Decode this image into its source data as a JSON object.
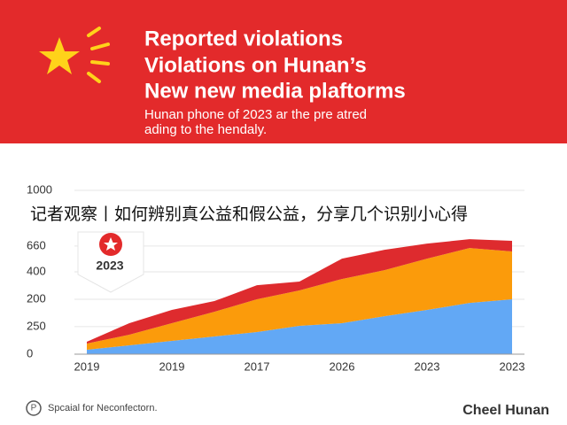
{
  "header": {
    "title": [
      "Reported violations",
      "Violations on Hunan’s",
      "New new media plaftorms"
    ],
    "subtitle": [
      "Hunan phone of 2023 ar the pre atred",
      "ading to the hendaly."
    ]
  },
  "chart_data": {
    "type": "area",
    "categories": [
      "2019",
      null,
      "2019",
      null,
      "2017",
      null,
      "2026",
      null,
      "2023",
      null,
      "2023"
    ],
    "series": [
      {
        "color": "#62a8f5",
        "values": [
          27,
          54,
          81,
          108,
          135,
          173,
          189,
          232,
          270,
          313,
          335
        ]
      },
      {
        "color": "#fb9b0b",
        "values": [
          38,
          65,
          108,
          151,
          200,
          216,
          270,
          281,
          313,
          335,
          292
        ]
      },
      {
        "color": "#de2b2e",
        "values": [
          11,
          70,
          81,
          65,
          86,
          54,
          124,
          124,
          92,
          54,
          65
        ]
      }
    ],
    "ylim": [
      0,
      1000
    ],
    "yticks": [
      0,
      {
        "value": 168,
        "label": "250"
      },
      {
        "value": 335,
        "label": "200"
      },
      {
        "value": 503,
        "label": "400"
      },
      660,
      1000
    ],
    "grid": true,
    "annotation": "2023"
  },
  "overlay_text": "记者观察丨如何辨别真公益和假公益，分享几个识别小心得",
  "footer": {
    "left": "Spcaial for Neconfectorn.",
    "right": "Cheel Hunan"
  }
}
